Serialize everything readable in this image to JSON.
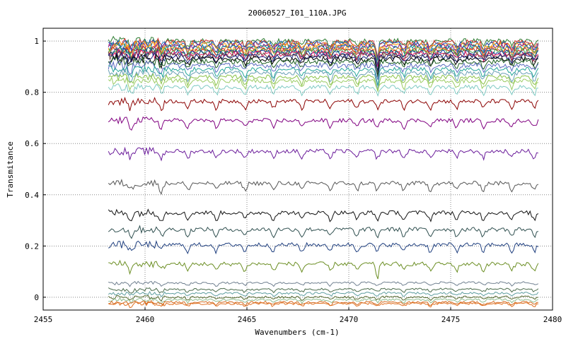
{
  "chart_data": {
    "type": "line",
    "title": "20060527_I01_110A.JPG",
    "xlabel": "Wavenumbers (cm-1)",
    "ylabel": "Transmitance",
    "xlim": [
      2455,
      2480
    ],
    "ylim": [
      -0.05,
      1.05
    ],
    "x_ticks": [
      "2455",
      "2460",
      "2465",
      "2470",
      "2475",
      "2480"
    ],
    "y_ticks": [
      "0",
      "0.2",
      "0.4",
      "0.6",
      "0.8",
      "1"
    ],
    "grid": true,
    "x_range_of_data": [
      2458.2,
      2479.3
    ],
    "absorption_lines_cm-1": [
      2459.3,
      2460.8,
      2462.1,
      2463.5,
      2464.9,
      2466.3,
      2467.7,
      2469.1,
      2470.4,
      2471.4,
      2472.7,
      2474.0,
      2475.3,
      2476.6,
      2478.0,
      2479.1
    ],
    "series": [
      {
        "color": "#2e7d32",
        "level": 1.0
      },
      {
        "color": "#d32f2f",
        "level": 0.995
      },
      {
        "color": "#1565c0",
        "level": 0.99
      },
      {
        "color": "#ff9800",
        "level": 0.985
      },
      {
        "color": "#7b1fa2",
        "level": 0.98
      },
      {
        "color": "#00838f",
        "level": 0.975
      },
      {
        "color": "#f9a825",
        "level": 0.97
      },
      {
        "color": "#c62828",
        "level": 0.965
      },
      {
        "color": "#43a047",
        "level": 0.96
      },
      {
        "color": "#0d47a1",
        "level": 0.955
      },
      {
        "color": "#e91e63",
        "level": 0.95
      },
      {
        "color": "#6d4c41",
        "level": 0.945
      },
      {
        "color": "#1a237e",
        "level": 0.94
      },
      {
        "color": "#000000",
        "level": 0.93
      },
      {
        "color": "#1b5e20",
        "level": 0.92
      },
      {
        "color": "#5c6bc0",
        "level": 0.905
      },
      {
        "color": "#26a69a",
        "level": 0.89
      },
      {
        "color": "#6a9fb5",
        "level": 0.875
      },
      {
        "color": "#8bc34a",
        "level": 0.86
      },
      {
        "color": "#9ccc65",
        "level": 0.845
      },
      {
        "color": "#80cbc4",
        "level": 0.82
      },
      {
        "color": "#8b0000",
        "level": 0.765
      },
      {
        "color": "#800080",
        "level": 0.69
      },
      {
        "color": "#6a1b9a",
        "level": 0.57
      },
      {
        "color": "#555555",
        "level": 0.445
      },
      {
        "color": "#111111",
        "level": 0.33
      },
      {
        "color": "#2f4f4f",
        "level": 0.265
      },
      {
        "color": "#1f3f7f",
        "level": 0.205
      },
      {
        "color": "#6b8e23",
        "level": 0.13
      },
      {
        "color": "#708090",
        "level": 0.055
      },
      {
        "color": "#4b6b4b",
        "level": 0.03
      },
      {
        "color": "#5f9ea0",
        "level": 0.015
      },
      {
        "color": "#556b2f",
        "level": 0.0
      },
      {
        "color": "#8fbc8f",
        "level": -0.01
      },
      {
        "color": "#d2691e",
        "level": -0.02
      },
      {
        "color": "#e07020",
        "level": -0.025
      }
    ]
  }
}
